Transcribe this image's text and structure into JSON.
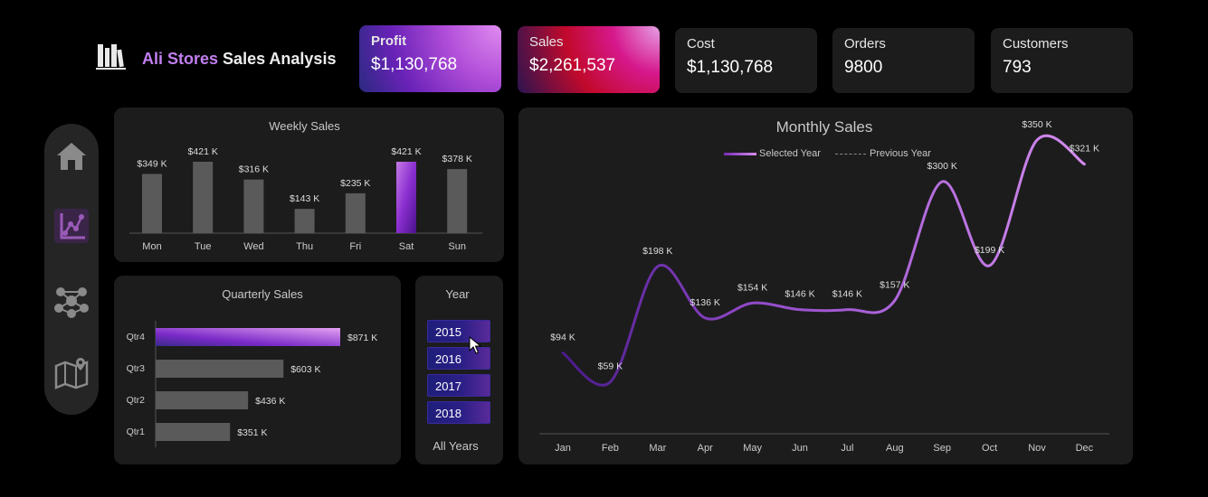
{
  "header": {
    "brand": "Ali Stores",
    "title": "Sales Analysis"
  },
  "kpis": [
    {
      "label": "Profit",
      "value": "$1,130,768"
    },
    {
      "label": "Sales",
      "value": "$2,261,537"
    },
    {
      "label": "Cost",
      "value": "$1,130,768"
    },
    {
      "label": "Orders",
      "value": "9800"
    },
    {
      "label": "Customers",
      "value": "793"
    }
  ],
  "nav": {
    "items": [
      "home-icon",
      "analytics-icon",
      "network-icon",
      "map-icon"
    ],
    "active": 1
  },
  "colors": {
    "accent": "#b266e0",
    "bar": "#5a5a5a",
    "panel": "#1c1c1d",
    "background": "#000000"
  },
  "weekly": {
    "title": "Weekly Sales",
    "chart_data": {
      "type": "bar",
      "categories": [
        "Mon",
        "Tue",
        "Wed",
        "Thu",
        "Fri",
        "Sat",
        "Sun"
      ],
      "values": [
        349,
        421,
        316,
        143,
        235,
        421,
        378
      ],
      "labels": [
        "$349 K",
        "$421 K",
        "$316 K",
        "$143 K",
        "$235 K",
        "$421 K",
        "$378 K"
      ],
      "highlight": "Sat",
      "ylim": [
        0,
        460
      ]
    }
  },
  "quarterly": {
    "title": "Quarterly Sales",
    "chart_data": {
      "type": "bar",
      "orientation": "horizontal",
      "categories": [
        "Qtr4",
        "Qtr3",
        "Qtr2",
        "Qtr1"
      ],
      "values": [
        871,
        603,
        436,
        351
      ],
      "labels": [
        "$871 K",
        "$603 K",
        "$436 K",
        "$351 K"
      ],
      "highlight": "Qtr4",
      "xlim": [
        0,
        871
      ]
    }
  },
  "year_slicer": {
    "title": "Year",
    "options": [
      "2015",
      "2016",
      "2017",
      "2018"
    ],
    "all_label": "All Years"
  },
  "monthly": {
    "title": "Monthly Sales",
    "legend": {
      "selected": "Selected Year",
      "previous": "Previous Year"
    },
    "chart_data": {
      "type": "line",
      "categories": [
        "Jan",
        "Feb",
        "Mar",
        "Apr",
        "May",
        "Jun",
        "Jul",
        "Aug",
        "Sep",
        "Oct",
        "Nov",
        "Dec"
      ],
      "series": [
        {
          "name": "Selected Year",
          "values": [
            94,
            59,
            198,
            136,
            154,
            146,
            146,
            157,
            300,
            199,
            350,
            321
          ],
          "labels": [
            "$94 K",
            "$59 K",
            "$198 K",
            "$136 K",
            "$154 K",
            "$146 K",
            "$146 K",
            "$157 K",
            "$300 K",
            "$199 K",
            "$350 K",
            "$321 K"
          ]
        }
      ],
      "ylim": [
        0,
        400
      ]
    }
  }
}
